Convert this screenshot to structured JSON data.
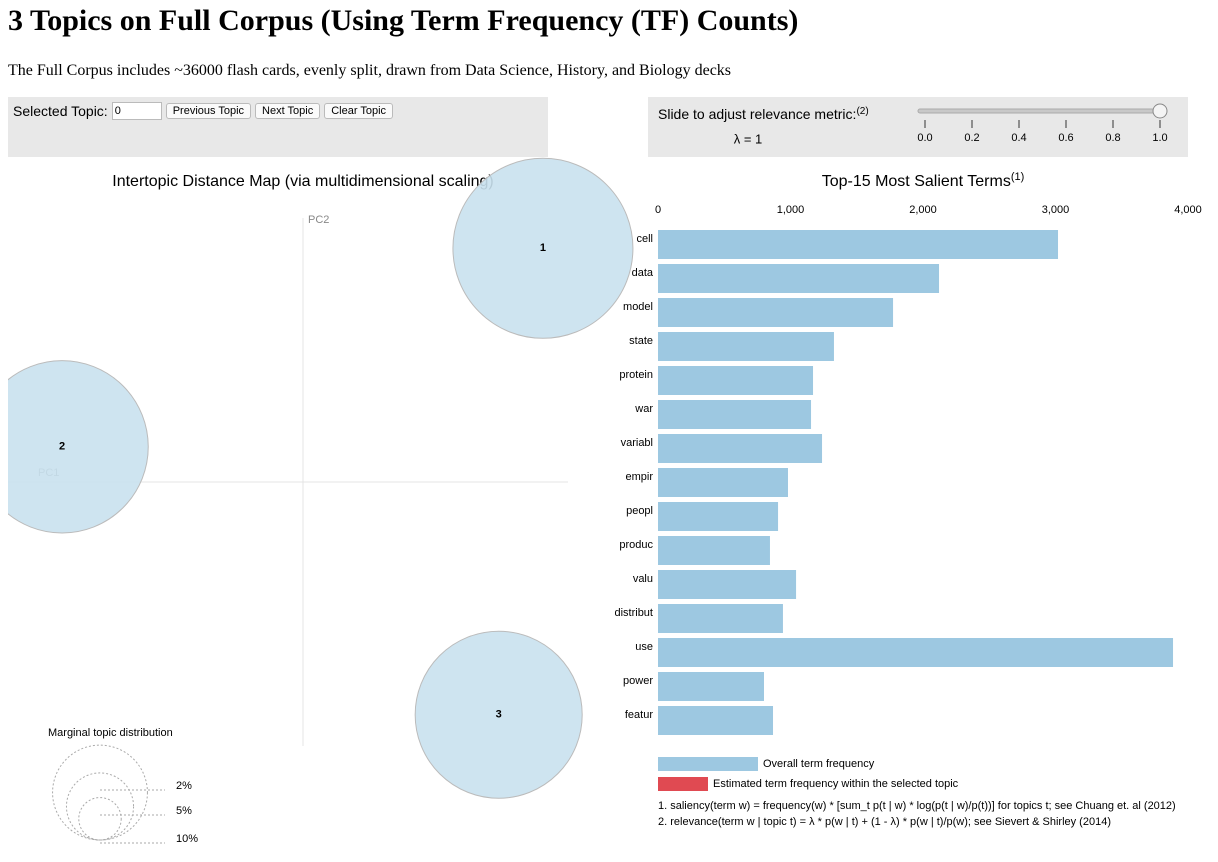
{
  "header": {
    "title": "3 Topics on Full Corpus (Using Term Frequency (TF) Counts)",
    "subtitle": "The Full Corpus includes ~36000 flash cards, evenly split, drawn from Data Science, History, and Biology decks"
  },
  "controls": {
    "topic_label": "Selected Topic:",
    "topic_value": "0",
    "buttons": [
      "Previous Topic",
      "Next Topic",
      "Clear Topic"
    ],
    "slider": {
      "label": "Slide to adjust relevance metric:",
      "note": "(2)",
      "lambda_label": "λ = 1",
      "value": 1,
      "ticks": [
        {
          "value": 0,
          "label": "0.0"
        },
        {
          "value": 0.2,
          "label": "0.2"
        },
        {
          "value": 0.4,
          "label": "0.4"
        },
        {
          "value": 0.6,
          "label": "0.6"
        },
        {
          "value": 0.8,
          "label": "0.8"
        },
        {
          "value": 1,
          "label": "1.0"
        }
      ]
    }
  },
  "topic_map": {
    "title": "Intertopic Distance Map (via multidimensional scaling)",
    "xlabel": "PC1",
    "ylabel": "PC2",
    "xlim": [
      -0.3,
      0.3
    ],
    "ylim": [
      -0.27,
      0.27
    ],
    "circle_color": "#c9e1ee",
    "topics": [
      {
        "label": "1",
        "x": 0.244,
        "y": 0.239,
        "size": 36
      },
      {
        "label": "2",
        "x": -0.245,
        "y": 0.036,
        "size": 33
      },
      {
        "label": "3",
        "x": 0.199,
        "y": -0.238,
        "size": 31
      }
    ],
    "marginal_legend": {
      "title": "Marginal topic distribution",
      "values": [
        2,
        5,
        10
      ],
      "labels": [
        "2%",
        "5%",
        "10%"
      ]
    }
  },
  "chart_data": {
    "type": "bar",
    "title": "Top-15 Most Salient Terms",
    "title_note": "(1)",
    "categories": [
      "cell",
      "data",
      "model",
      "state",
      "protein",
      "war",
      "variabl",
      "empir",
      "peopl",
      "produc",
      "valu",
      "distribut",
      "use",
      "power",
      "featur"
    ],
    "series": [
      {
        "name": "Overall term frequency",
        "color": "#9dc8e1",
        "values": [
          3019,
          2121,
          1774,
          1328,
          1170,
          1155,
          1238,
          981,
          906,
          845,
          1042,
          943,
          3887,
          800,
          868
        ]
      }
    ],
    "topic_series": {
      "name": "Estimated term frequency within the selected topic",
      "color": "#e04a52"
    },
    "xlim": [
      0,
      4000
    ],
    "xticks": [
      0,
      {
        "value": 1000,
        "label": "1,000"
      },
      {
        "value": 2000,
        "label": "2,000"
      },
      {
        "value": 3000,
        "label": "3,000"
      },
      {
        "value": 4000,
        "label": "4,000"
      }
    ],
    "footnotes": [
      "1. saliency(term w) = frequency(w) * [sum_t p(t | w) * log(p(t | w)/p(t))] for topics t; see Chuang et. al (2012)",
      "2. relevance(term w | topic t) = λ * p(w | t) + (1 - λ) * p(w | t)/p(w); see Sievert & Shirley (2014)"
    ]
  }
}
